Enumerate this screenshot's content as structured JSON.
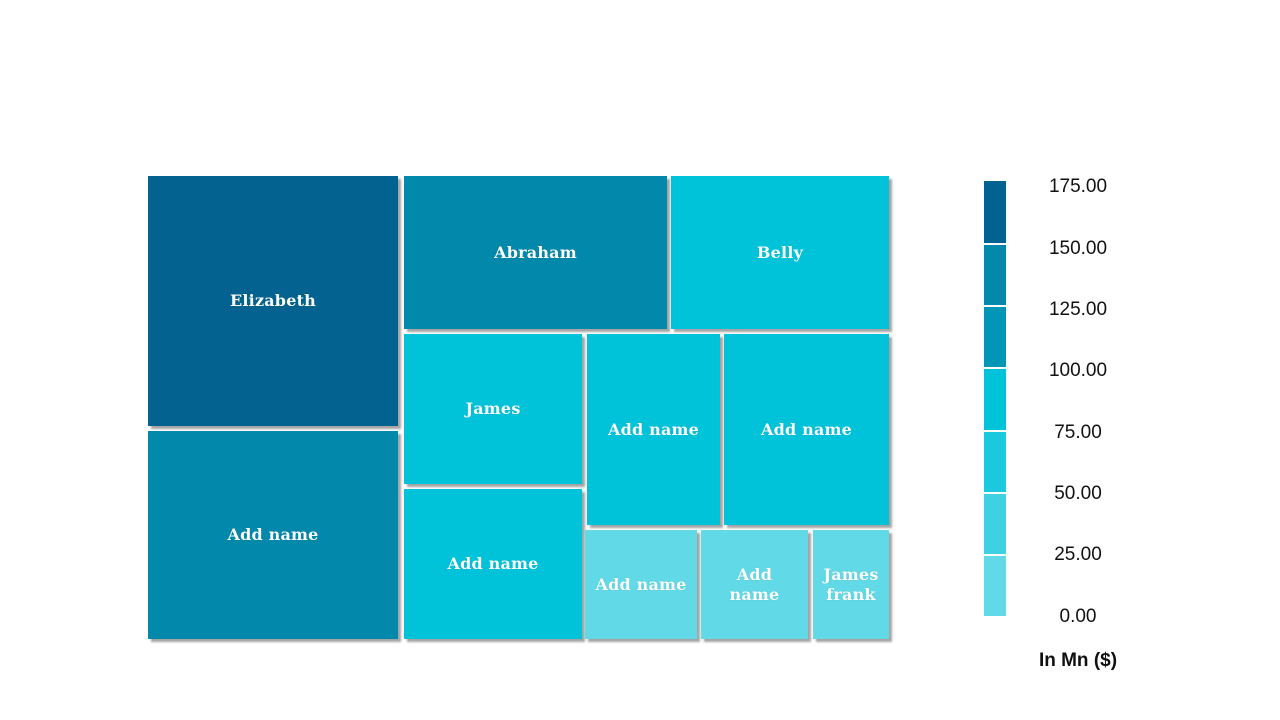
{
  "chart_data": {
    "type": "treemap",
    "title": "",
    "items": [
      {
        "label": "Elizabeth",
        "value": 175,
        "color": "#03628F"
      },
      {
        "label": "Abraham",
        "value": 150,
        "color": "#0288AA"
      },
      {
        "label": "Add name",
        "value": 150,
        "color": "#0288AA"
      },
      {
        "label": "Belly",
        "value": 100,
        "color": "#00C3DA"
      },
      {
        "label": "James",
        "value": 100,
        "color": "#00C3DA"
      },
      {
        "label": "Add name",
        "value": 100,
        "color": "#00C3DA"
      },
      {
        "label": "Add name",
        "value": 100,
        "color": "#00C3DA"
      },
      {
        "label": "Add name",
        "value": 100,
        "color": "#00C3DA"
      },
      {
        "label": "Add name",
        "value": 25,
        "color": "#62D9E6"
      },
      {
        "label": "Add name",
        "value": 25,
        "color": "#62D9E6"
      },
      {
        "label": "James frank",
        "value": 25,
        "color": "#62D9E6"
      }
    ],
    "legend": {
      "title": "In Mn ($)",
      "ticks": [
        "175.00",
        "150.00",
        "125.00",
        "100.00",
        "75.00",
        "50.00",
        "25.00",
        "0.00"
      ],
      "colors": [
        "#03628F",
        "#0288AA",
        "#0196B5",
        "#00C3DA",
        "#1CC8DD",
        "#3FD0E2",
        "#62D9E6"
      ]
    }
  }
}
